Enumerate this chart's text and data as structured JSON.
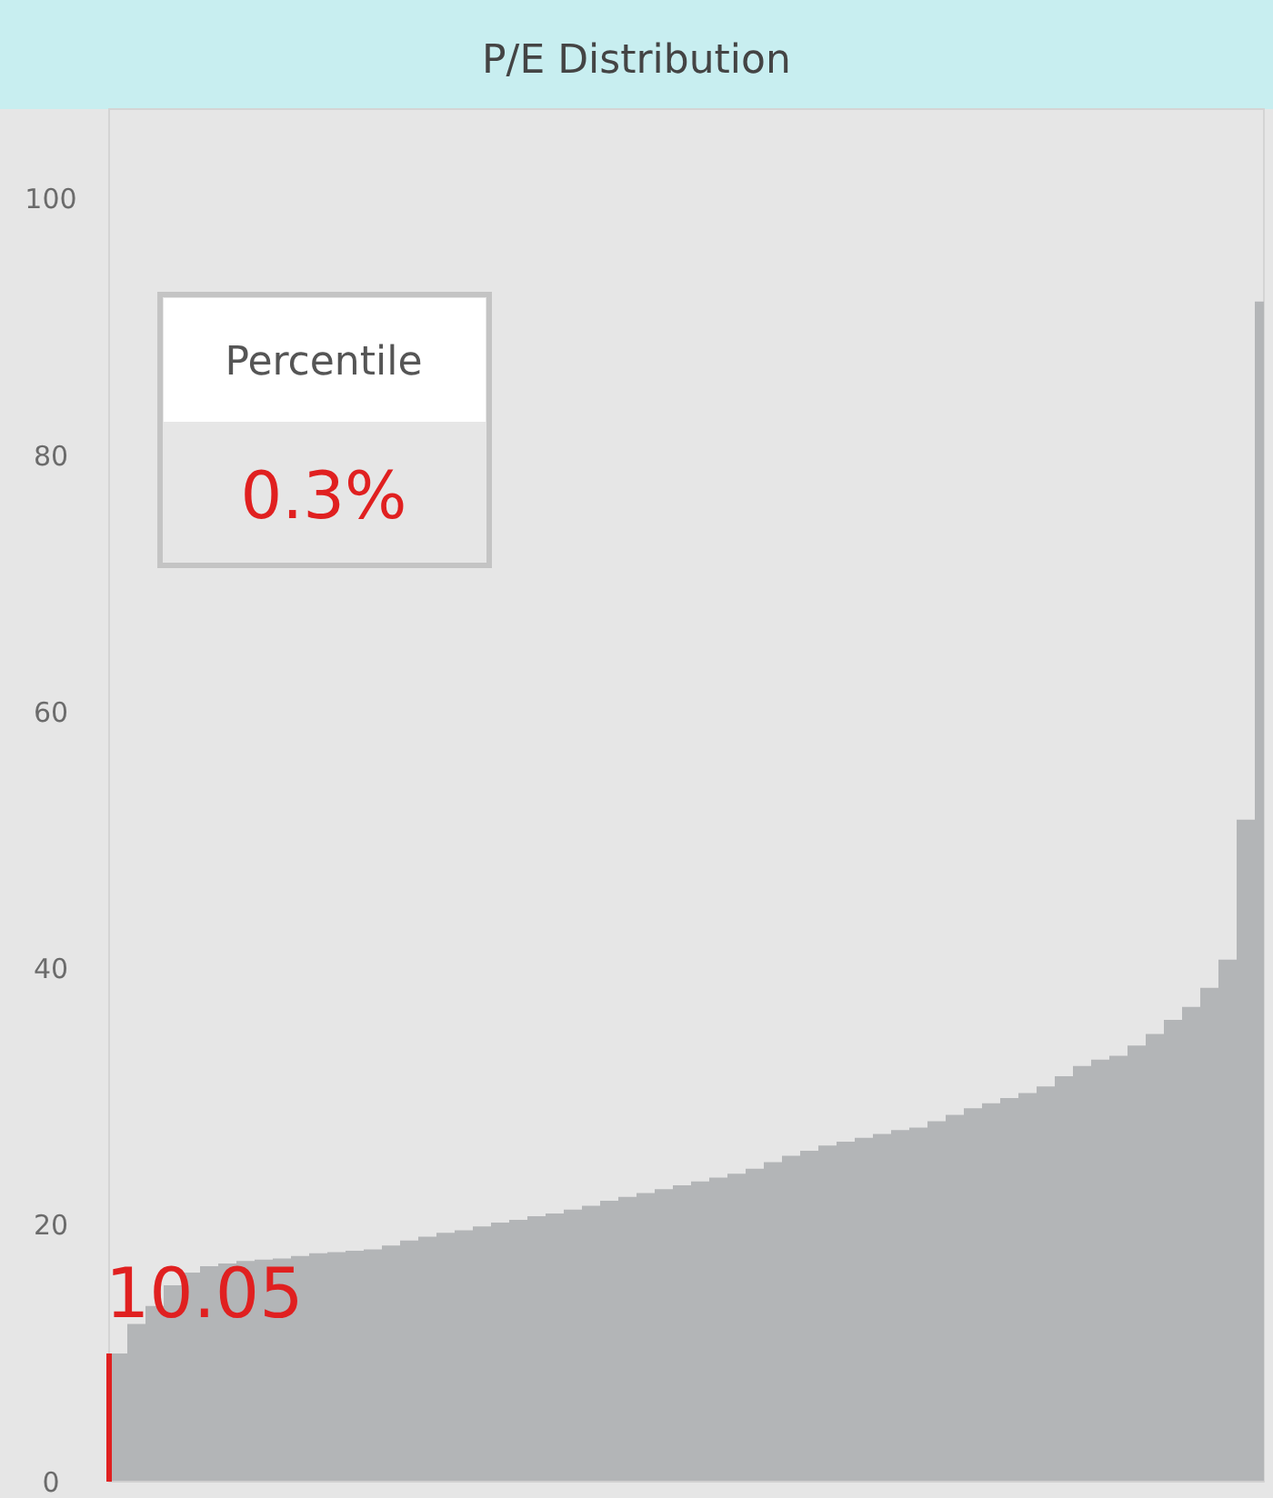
{
  "chart_data": {
    "type": "area",
    "title": "P/E Distribution",
    "categories": [
      null,
      null,
      null,
      null,
      null,
      null,
      null,
      null,
      null,
      null,
      null,
      null,
      null,
      null,
      null,
      null,
      null,
      null,
      null,
      null,
      null,
      null,
      null,
      null,
      null,
      null,
      null,
      null,
      null,
      null,
      null,
      null,
      null,
      null,
      null,
      null,
      null,
      null,
      null,
      null,
      null,
      null,
      null,
      null,
      null,
      null,
      null,
      null,
      null,
      null,
      null,
      null,
      null,
      null,
      null,
      null,
      null,
      null,
      null,
      null,
      null,
      null,
      null,
      null
    ],
    "series": [
      {
        "color": "#b3b5b7",
        "values": [
          10,
          12.3,
          13.7,
          15.3,
          16.3,
          16.8,
          17.0,
          17.2,
          17.3,
          17.4,
          17.6,
          17.8,
          17.9,
          18.0,
          18.1,
          18.4,
          18.8,
          19.1,
          19.4,
          19.6,
          19.9,
          20.2,
          20.4,
          20.7,
          20.9,
          21.2,
          21.5,
          21.9,
          22.2,
          22.5,
          22.8,
          23.1,
          23.4,
          23.7,
          24.0,
          24.4,
          24.9,
          25.4,
          25.8,
          26.2,
          26.5,
          26.8,
          27.1,
          27.4,
          27.6,
          28.1,
          28.6,
          29.1,
          29.5,
          29.9,
          30.3,
          30.8,
          31.6,
          32.4,
          32.9,
          33.2,
          34.0,
          34.9,
          36.0,
          37.0,
          38.5,
          40.7,
          51.6,
          92
        ]
      }
    ],
    "ylim": [
      0,
      107
    ],
    "yticks": [
      0,
      20,
      40,
      60,
      80,
      100
    ],
    "grid": false,
    "annotations": [
      "10.05",
      "Percentile",
      "0.3%"
    ]
  }
}
